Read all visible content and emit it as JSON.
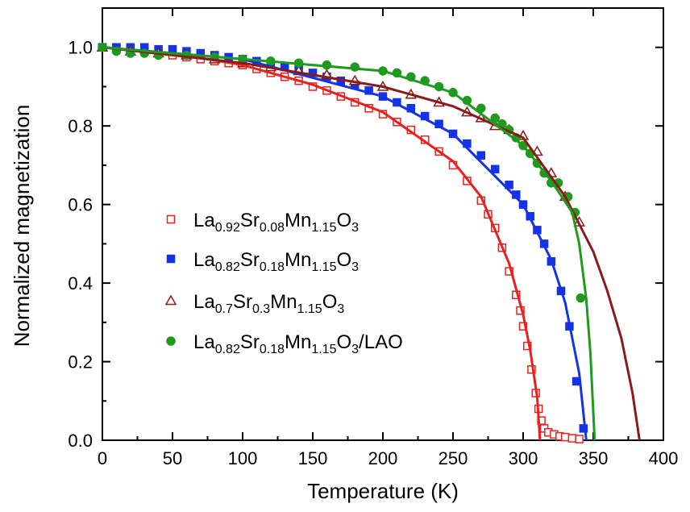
{
  "chart_data": {
    "type": "scatter",
    "x_label": "Temperature (K)",
    "y_label": "Normalized magnetization",
    "xlim": [
      0,
      400
    ],
    "ylim": [
      0,
      1.1
    ],
    "xticks": [
      0,
      50,
      100,
      150,
      200,
      250,
      300,
      350,
      400
    ],
    "yticks": [
      {
        "value": 0,
        "label": "0.0"
      },
      {
        "value": 0.2,
        "label": "0.2"
      },
      {
        "value": 0.4,
        "label": "0.4"
      },
      {
        "value": 0.6,
        "label": "0.6"
      },
      {
        "value": 0.8,
        "label": "0.8"
      },
      {
        "value": 1.0,
        "label": "1.0"
      }
    ],
    "series": [
      {
        "name": "La0.92Sr0.08Mn1.15O3",
        "color": "#e8211f",
        "marker": "open-square",
        "x": [
          0,
          10,
          20,
          30,
          40,
          50,
          60,
          70,
          80,
          90,
          100,
          110,
          120,
          130,
          140,
          150,
          160,
          170,
          180,
          190,
          200,
          210,
          220,
          230,
          240,
          250,
          260,
          270,
          275,
          280,
          285,
          290,
          295,
          298,
          300,
          303,
          306,
          309,
          311,
          313,
          315,
          318,
          322,
          326,
          330,
          335,
          340
        ],
        "values": [
          1.0,
          1.0,
          0.995,
          0.99,
          0.985,
          0.98,
          0.975,
          0.97,
          0.965,
          0.96,
          0.955,
          0.945,
          0.935,
          0.925,
          0.915,
          0.9,
          0.89,
          0.875,
          0.86,
          0.845,
          0.83,
          0.81,
          0.79,
          0.765,
          0.735,
          0.7,
          0.66,
          0.61,
          0.575,
          0.54,
          0.49,
          0.43,
          0.37,
          0.33,
          0.29,
          0.24,
          0.18,
          0.12,
          0.08,
          0.05,
          0.03,
          0.02,
          0.015,
          0.01,
          0.008,
          0.005,
          0.003
        ],
        "fit": {
          "x": [
            0,
            50,
            100,
            150,
            200,
            250,
            270,
            290,
            300,
            305,
            310,
            312
          ],
          "values": [
            1.0,
            0.985,
            0.955,
            0.905,
            0.835,
            0.71,
            0.62,
            0.45,
            0.32,
            0.23,
            0.11,
            0
          ]
        }
      },
      {
        "name": "La0.82Sr0.18Mn1.15O3",
        "color": "#1432e6",
        "marker": "filled-square",
        "x": [
          0,
          10,
          20,
          30,
          40,
          50,
          60,
          70,
          80,
          90,
          100,
          110,
          120,
          130,
          140,
          150,
          160,
          170,
          180,
          190,
          200,
          210,
          220,
          230,
          240,
          250,
          260,
          270,
          280,
          290,
          295,
          300,
          305,
          310,
          315,
          320,
          327,
          333,
          338,
          343
        ],
        "values": [
          1.0,
          1.0,
          1.0,
          1.0,
          0.995,
          0.995,
          0.99,
          0.985,
          0.98,
          0.975,
          0.97,
          0.965,
          0.96,
          0.95,
          0.945,
          0.935,
          0.925,
          0.915,
          0.905,
          0.89,
          0.875,
          0.86,
          0.845,
          0.825,
          0.805,
          0.78,
          0.755,
          0.725,
          0.69,
          0.65,
          0.625,
          0.6,
          0.57,
          0.535,
          0.5,
          0.455,
          0.38,
          0.29,
          0.15,
          0.03
        ],
        "fit": {
          "x": [
            0,
            100,
            200,
            250,
            300,
            320,
            330,
            340,
            345
          ],
          "values": [
            1.0,
            0.97,
            0.875,
            0.78,
            0.6,
            0.46,
            0.35,
            0.17,
            0
          ]
        }
      },
      {
        "name": "La0.7Sr0.3Mn1.15O3",
        "color": "#8b1a1a",
        "marker": "open-triangle",
        "x": [
          0,
          20,
          40,
          60,
          80,
          100,
          120,
          140,
          160,
          180,
          200,
          220,
          240,
          260,
          270,
          280,
          290,
          300,
          310,
          320,
          330,
          340
        ],
        "values": [
          1.0,
          0.99,
          0.985,
          0.98,
          0.97,
          0.96,
          0.95,
          0.94,
          0.93,
          0.915,
          0.9,
          0.88,
          0.86,
          0.835,
          0.82,
          0.8,
          0.79,
          0.775,
          0.735,
          0.68,
          0.62,
          0.555
        ],
        "fit": {
          "x": [
            0,
            100,
            200,
            250,
            300,
            330,
            350,
            360,
            370,
            378,
            383
          ],
          "values": [
            1.0,
            0.96,
            0.9,
            0.85,
            0.77,
            0.62,
            0.48,
            0.38,
            0.26,
            0.12,
            0
          ]
        }
      },
      {
        "name": "La0.82Sr0.18Mn1.15O3/LAO",
        "color": "#1e9a1e",
        "marker": "filled-circle",
        "x": [
          0,
          10,
          20,
          30,
          40,
          60,
          80,
          100,
          120,
          140,
          160,
          180,
          200,
          210,
          220,
          230,
          240,
          250,
          260,
          270,
          280,
          285,
          290,
          295,
          300,
          305,
          310,
          315,
          320,
          325,
          332,
          337,
          341
        ],
        "values": [
          1.0,
          0.99,
          0.985,
          0.985,
          0.98,
          0.98,
          0.975,
          0.97,
          0.965,
          0.96,
          0.955,
          0.95,
          0.94,
          0.935,
          0.925,
          0.915,
          0.9,
          0.885,
          0.865,
          0.845,
          0.82,
          0.805,
          0.79,
          0.77,
          0.75,
          0.73,
          0.705,
          0.68,
          0.655,
          0.655,
          0.62,
          0.58,
          0.362
        ],
        "fit": {
          "x": [
            0,
            100,
            200,
            250,
            300,
            320,
            335,
            340,
            345,
            348,
            351
          ],
          "values": [
            1.0,
            0.97,
            0.94,
            0.885,
            0.75,
            0.66,
            0.58,
            0.5,
            0.36,
            0.22,
            0
          ]
        }
      }
    ]
  }
}
